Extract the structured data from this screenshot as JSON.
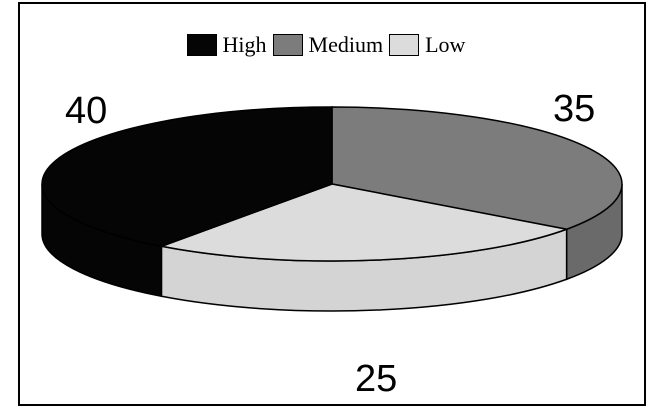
{
  "chart_data": {
    "type": "pie",
    "title": "",
    "categories": [
      "High",
      "Medium",
      "Low"
    ],
    "values": [
      40,
      35,
      25
    ],
    "colors": [
      "#050505",
      "#7c7c7c",
      "#dcdcdc"
    ],
    "side_colors": [
      "#050505",
      "#6a6a6a",
      "#d4d4d4"
    ],
    "legend_position": "top",
    "style": "3d-exploded-free"
  },
  "labels": {
    "high": "40",
    "medium": "35",
    "low": "25"
  }
}
